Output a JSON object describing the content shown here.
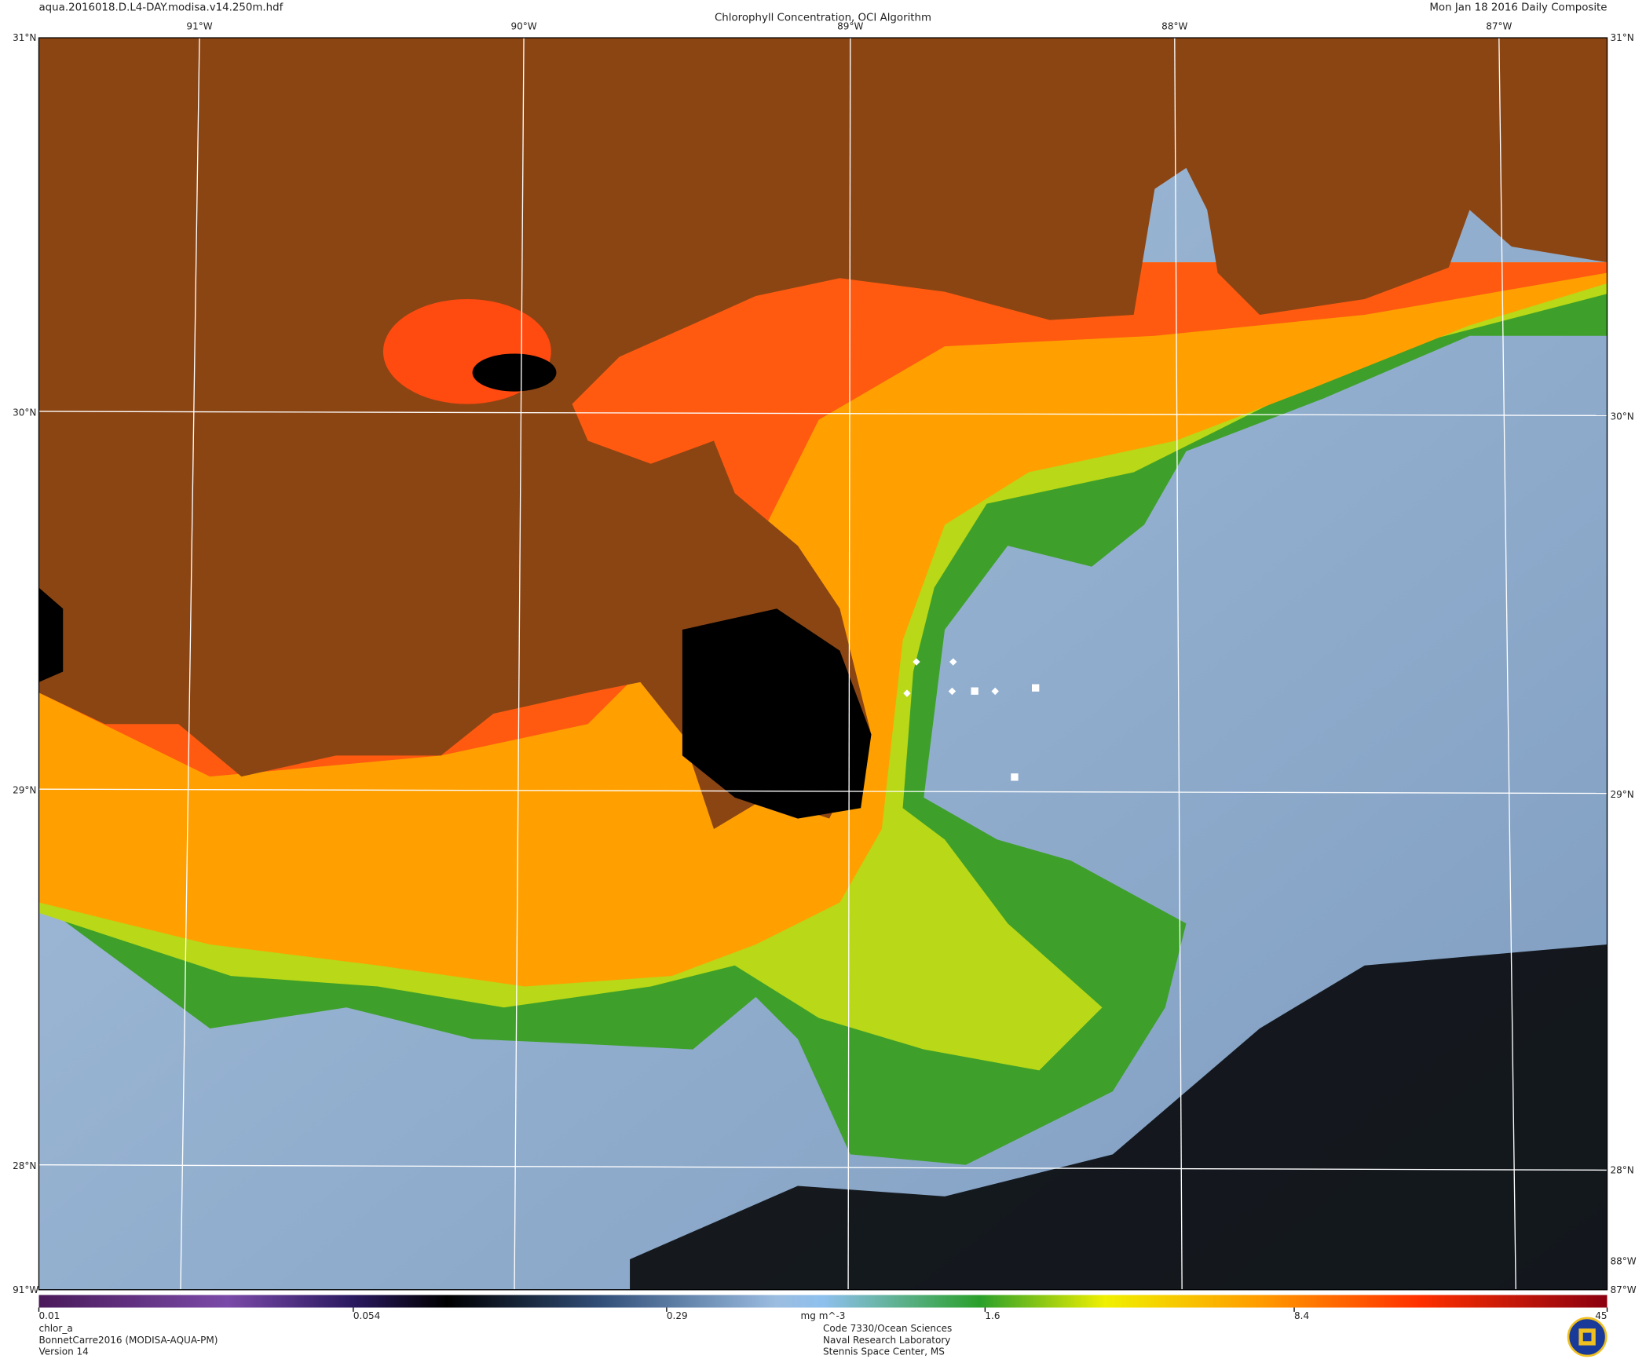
{
  "header": {
    "filename": "aqua.2016018.D.L4-DAY.modisa.v14.250m.hdf",
    "title": "Chlorophyll Concentration, OCI Algorithm",
    "date": "Mon Jan 18 2016 Daily Composite"
  },
  "grid": {
    "lon_labels": [
      "91°W",
      "90°W",
      "89°W",
      "88°W",
      "87°W"
    ],
    "lat_labels": [
      "31°N",
      "30°N",
      "29°N",
      "28°N"
    ]
  },
  "colorbar": {
    "ticks": [
      0.01,
      0.054,
      0.29,
      1.6,
      8.4,
      45
    ],
    "unit": "mg m^-3"
  },
  "footer": {
    "left": [
      "chlor_a",
      "BonnetCarre2016 (MODISA-AQUA-PM)",
      "Version 14"
    ],
    "center": [
      "Code 7330/Ocean Sciences",
      "Naval Research Laboratory",
      "Stennis Space Center, MS"
    ]
  }
}
